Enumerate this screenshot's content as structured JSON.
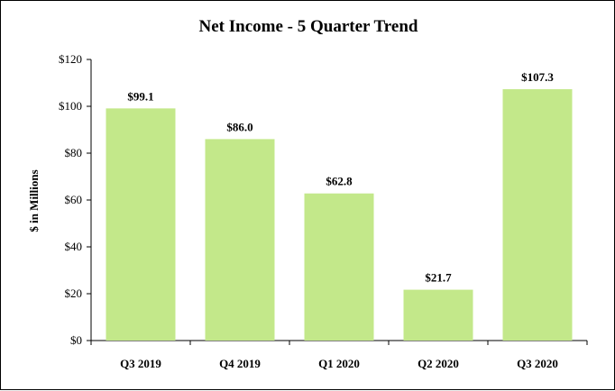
{
  "chart_data": {
    "type": "bar",
    "title": "Net Income - 5 Quarter Trend",
    "xlabel": "",
    "ylabel": "$ in Millions",
    "categories": [
      "Q3 2019",
      "Q4 2019",
      "Q1 2020",
      "Q2 2020",
      "Q3 2020"
    ],
    "values": [
      99.1,
      86.0,
      62.8,
      21.7,
      107.3
    ],
    "data_labels": [
      "$99.1",
      "$86.0",
      "$62.8",
      "$21.7",
      "$107.3"
    ],
    "ylim": [
      0,
      120
    ],
    "yticks": [
      0,
      20,
      40,
      60,
      80,
      100,
      120
    ],
    "ytick_labels": [
      "$0",
      "$20",
      "$40",
      "$60",
      "$80",
      "$100",
      "$120"
    ],
    "grid": false,
    "legend": "none",
    "bar_color": "#c3e88a"
  }
}
